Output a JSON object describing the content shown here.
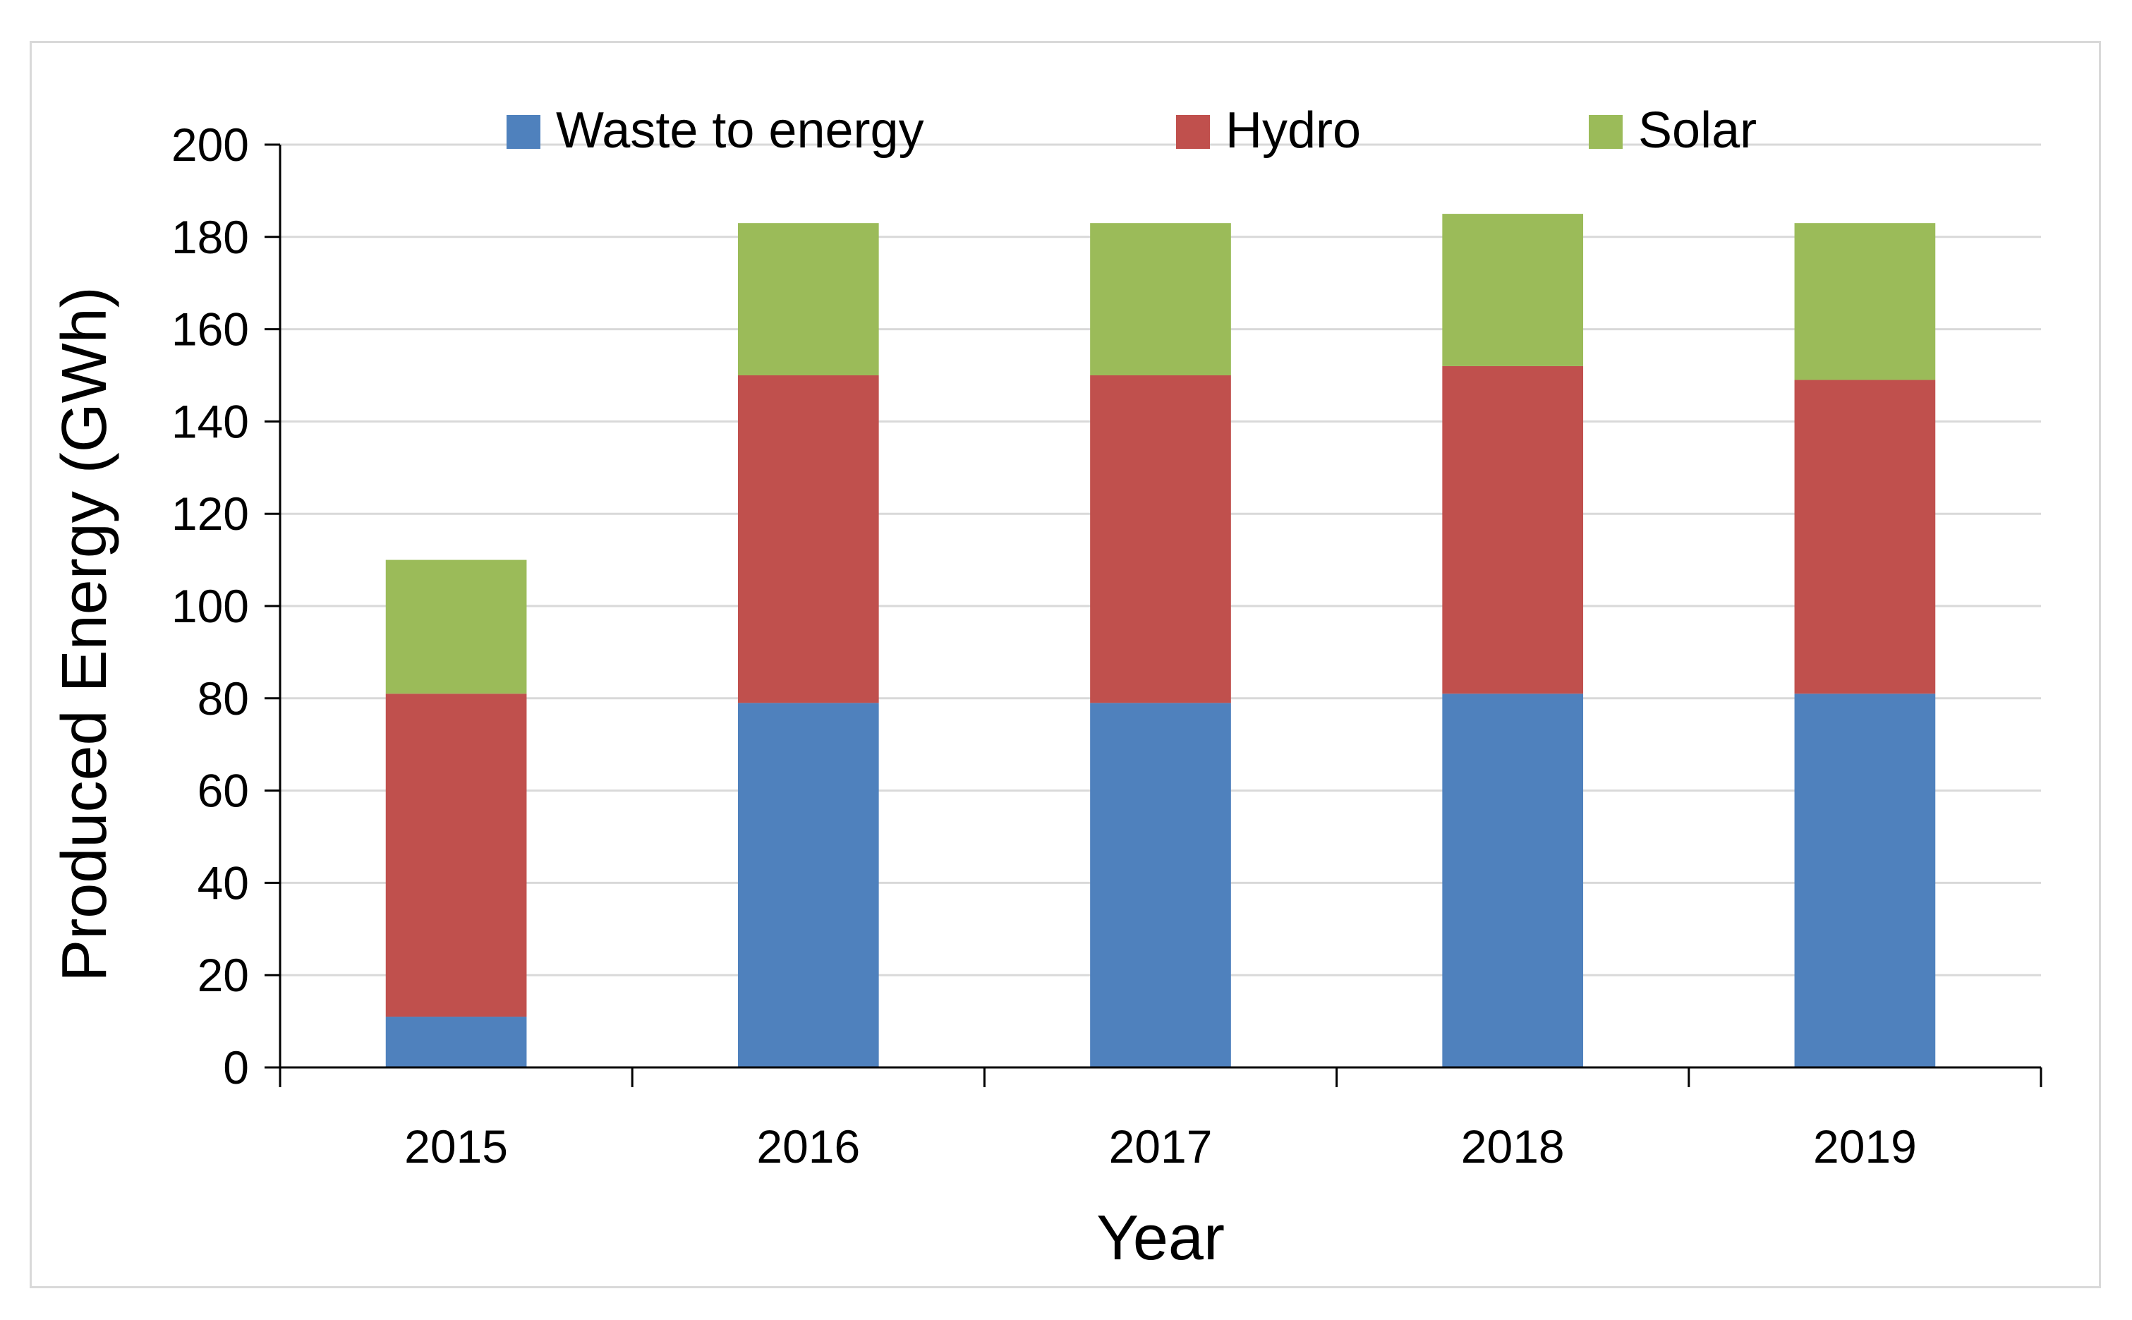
{
  "chart_data": {
    "type": "bar",
    "stacked": true,
    "title": "",
    "xlabel": "Year",
    "ylabel": "Produced Energy (GWh)",
    "categories": [
      "2015",
      "2016",
      "2017",
      "2018",
      "2019"
    ],
    "ylim": [
      0,
      200
    ],
    "yticks": [
      0,
      20,
      40,
      60,
      80,
      100,
      120,
      140,
      160,
      180,
      200
    ],
    "grid": true,
    "legend_position": "top",
    "series": [
      {
        "name": "Waste to energy",
        "color": "#4F81BD",
        "values": [
          11,
          79,
          79,
          81,
          81
        ]
      },
      {
        "name": "Hydro",
        "color": "#C0504D",
        "values": [
          70,
          71,
          71,
          71,
          68
        ]
      },
      {
        "name": "Solar",
        "color": "#9BBB59",
        "values": [
          29,
          33,
          33,
          33,
          34
        ]
      }
    ]
  }
}
